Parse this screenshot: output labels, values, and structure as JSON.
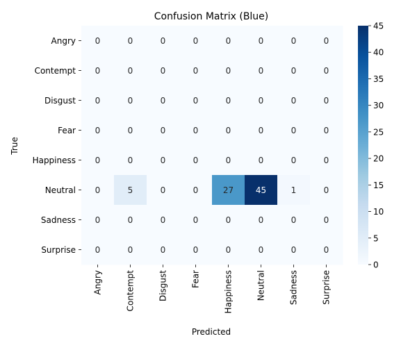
{
  "chart_data": {
    "type": "heatmap",
    "title": "Confusion Matrix (Blue)",
    "xlabel": "Predicted",
    "ylabel": "True",
    "x_categories": [
      "Angry",
      "Contempt",
      "Disgust",
      "Fear",
      "Happiness",
      "Neutral",
      "Sadness",
      "Surprise"
    ],
    "y_categories": [
      "Angry",
      "Contempt",
      "Disgust",
      "Fear",
      "Happiness",
      "Neutral",
      "Sadness",
      "Surprise"
    ],
    "values": [
      [
        0,
        0,
        0,
        0,
        0,
        0,
        0,
        0
      ],
      [
        0,
        0,
        0,
        0,
        0,
        0,
        0,
        0
      ],
      [
        0,
        0,
        0,
        0,
        0,
        0,
        0,
        0
      ],
      [
        0,
        0,
        0,
        0,
        0,
        0,
        0,
        0
      ],
      [
        0,
        0,
        0,
        0,
        0,
        0,
        0,
        0
      ],
      [
        0,
        5,
        0,
        0,
        27,
        45,
        1,
        0
      ],
      [
        0,
        0,
        0,
        0,
        0,
        0,
        0,
        0
      ],
      [
        0,
        0,
        0,
        0,
        0,
        0,
        0,
        0
      ]
    ],
    "colormap": "Blues",
    "value_range": [
      0,
      45
    ],
    "colorbar_ticks": [
      0,
      5,
      10,
      15,
      20,
      25,
      30,
      35,
      40,
      45
    ],
    "annotations": true,
    "grid": false
  }
}
